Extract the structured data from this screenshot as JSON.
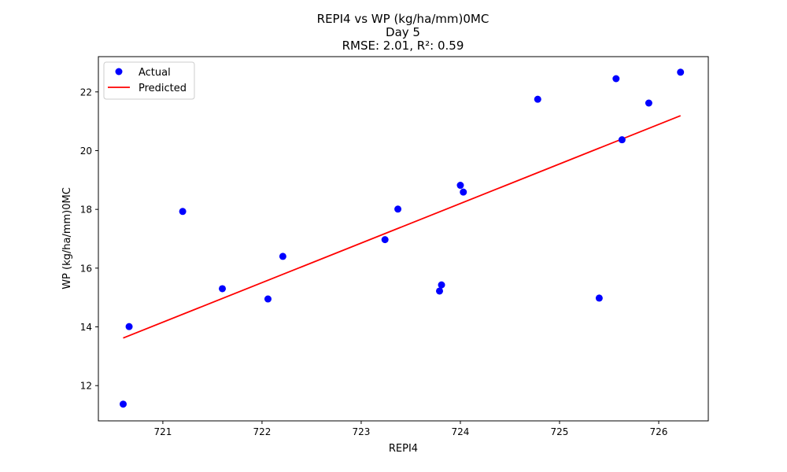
{
  "chart_data": {
    "type": "scatter",
    "title": [
      "REPI4 vs WP (kg/ha/mm)0MC",
      "Day 5",
      "RMSE: 2.01, R²: 0.59"
    ],
    "xlabel": "REPI4",
    "ylabel": "WP (kg/ha/mm)0MC",
    "xlim": [
      720.35,
      726.5
    ],
    "ylim": [
      10.8,
      23.2
    ],
    "xticks": [
      721,
      722,
      723,
      724,
      725,
      726
    ],
    "yticks": [
      12,
      14,
      16,
      18,
      20,
      22
    ],
    "grid": false,
    "legend_position": "upper-left",
    "series": [
      {
        "name": "Actual",
        "kind": "points",
        "color": "#0000ff",
        "points": [
          [
            720.6,
            11.37
          ],
          [
            720.66,
            14.01
          ],
          [
            721.2,
            17.93
          ],
          [
            721.6,
            15.3
          ],
          [
            722.06,
            14.95
          ],
          [
            722.21,
            16.4
          ],
          [
            723.24,
            16.97
          ],
          [
            723.37,
            18.01
          ],
          [
            723.79,
            15.22
          ],
          [
            723.81,
            15.43
          ],
          [
            724.0,
            18.82
          ],
          [
            724.03,
            18.59
          ],
          [
            724.78,
            21.75
          ],
          [
            725.4,
            14.98
          ],
          [
            725.57,
            22.45
          ],
          [
            725.63,
            20.37
          ],
          [
            725.9,
            21.62
          ],
          [
            726.22,
            22.67
          ]
        ]
      },
      {
        "name": "Predicted",
        "kind": "line",
        "color": "#ff0000",
        "points": [
          [
            720.6,
            13.62
          ],
          [
            726.22,
            21.19
          ]
        ]
      }
    ]
  }
}
